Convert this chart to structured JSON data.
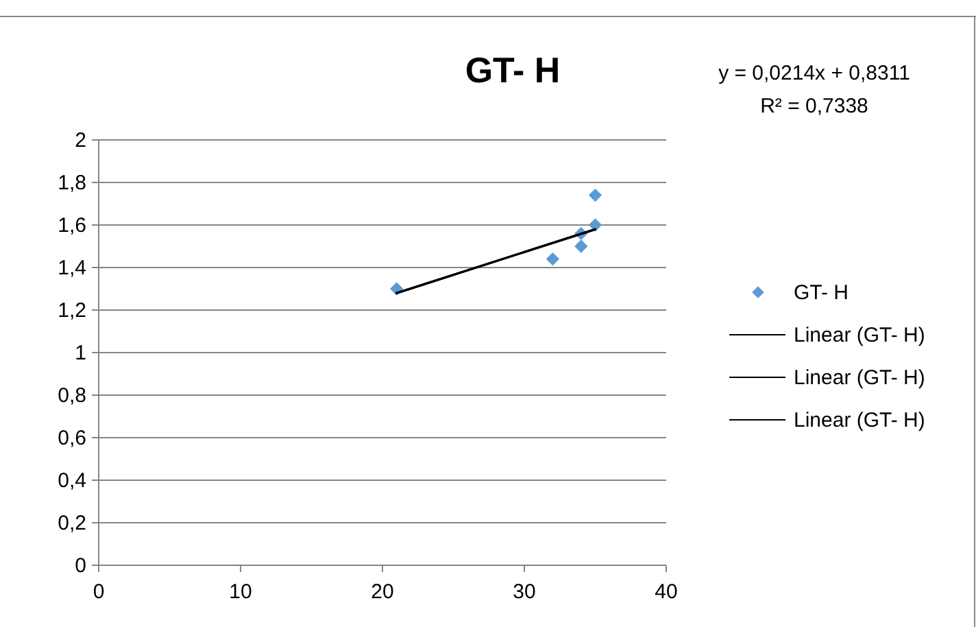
{
  "chart_data": {
    "type": "scatter",
    "title": "GT- H",
    "annotations": [
      "y = 0,0214x + 0,8311",
      "R² = 0,7338"
    ],
    "xlim": [
      0,
      40
    ],
    "xticks": [
      0,
      10,
      20,
      30,
      40
    ],
    "ylim": [
      0,
      2
    ],
    "yticks": [
      0,
      {
        "value": 0.2,
        "label": "0,2"
      },
      {
        "value": 0.4,
        "label": "0,4"
      },
      {
        "value": 0.6,
        "label": "0,6"
      },
      {
        "value": 0.8,
        "label": "0,8"
      },
      1,
      {
        "value": 1.2,
        "label": "1,2"
      },
      {
        "value": 1.4,
        "label": "1,4"
      },
      {
        "value": 1.6,
        "label": "1,6"
      },
      {
        "value": 1.8,
        "label": "1,8"
      },
      2
    ],
    "grid": "y",
    "legend": "right",
    "series": [
      {
        "name": "GT- H",
        "marker": "diamond",
        "color": "#5b9bd5",
        "x": [
          21,
          32,
          34,
          34,
          35,
          35
        ],
        "values": [
          1.3,
          1.44,
          1.5,
          1.56,
          1.6,
          1.74
        ]
      },
      {
        "name": "Linear (GT- H)",
        "type": "line",
        "color": "#000000",
        "x": [
          21,
          35
        ],
        "values": [
          1.28,
          1.58
        ]
      },
      {
        "name": "Linear (GT- H)",
        "type": "line",
        "color": "#000000",
        "x": [
          21,
          35
        ],
        "values": [
          1.28,
          1.58
        ]
      },
      {
        "name": "Linear (GT- H)",
        "type": "line",
        "color": "#000000",
        "x": [
          21,
          35
        ],
        "values": [
          1.28,
          1.58
        ]
      }
    ]
  }
}
